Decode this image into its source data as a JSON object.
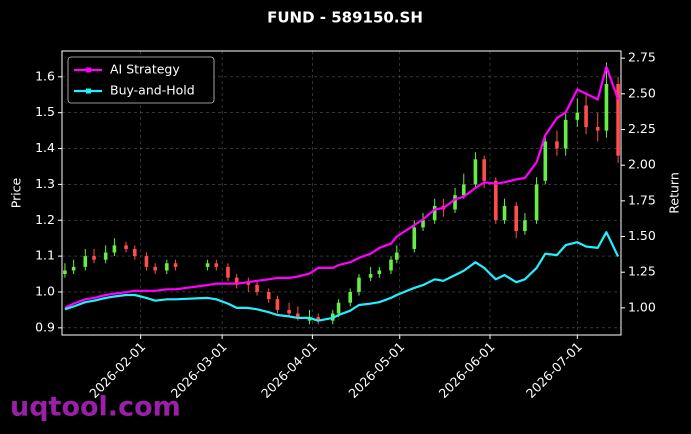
{
  "chart_data": {
    "type": "candlestick",
    "title": "FUND - 589150.SH",
    "ylabel": "Price",
    "y2label": "Return",
    "x": [
      "2026-01-06",
      "2026-01-09",
      "2026-01-13",
      "2026-01-16",
      "2026-01-20",
      "2026-01-23",
      "2026-01-27",
      "2026-01-30",
      "2026-02-03",
      "2026-02-06",
      "2026-02-10",
      "2026-02-13",
      "2026-02-24",
      "2026-02-27",
      "2026-03-03",
      "2026-03-06",
      "2026-03-10",
      "2026-03-13",
      "2026-03-17",
      "2026-03-20",
      "2026-03-24",
      "2026-03-27",
      "2026-03-31",
      "2026-04-03",
      "2026-04-08",
      "2026-04-10",
      "2026-04-14",
      "2026-04-17",
      "2026-04-21",
      "2026-04-24",
      "2026-04-28",
      "2026-04-30",
      "2026-05-06",
      "2026-05-09",
      "2026-05-13",
      "2026-05-16",
      "2026-05-20",
      "2026-05-23",
      "2026-05-27",
      "2026-05-30",
      "2026-06-03",
      "2026-06-06",
      "2026-06-10",
      "2026-06-13",
      "2026-06-17",
      "2026-06-20",
      "2026-06-24",
      "2026-06-27",
      "2026-07-01",
      "2026-07-04",
      "2026-07-08",
      "2026-07-11",
      "2026-07-15"
    ],
    "open": [
      1.05,
      1.06,
      1.07,
      1.1,
      1.09,
      1.11,
      1.13,
      1.12,
      1.1,
      1.07,
      1.06,
      1.08,
      1.07,
      1.08,
      1.07,
      1.04,
      1.03,
      1.02,
      1.0,
      0.98,
      0.95,
      0.94,
      0.92,
      0.93,
      0.92,
      0.94,
      0.97,
      1.0,
      1.04,
      1.05,
      1.06,
      1.09,
      1.12,
      1.18,
      1.2,
      1.24,
      1.23,
      1.27,
      1.3,
      1.37,
      1.31,
      1.2,
      1.24,
      1.17,
      1.2,
      1.31,
      1.42,
      1.4,
      1.48,
      1.52,
      1.46,
      1.45,
      1.58
    ],
    "high": [
      1.08,
      1.09,
      1.12,
      1.12,
      1.13,
      1.15,
      1.14,
      1.13,
      1.11,
      1.08,
      1.09,
      1.09,
      1.09,
      1.09,
      1.08,
      1.05,
      1.04,
      1.03,
      1.01,
      0.99,
      0.97,
      0.96,
      0.95,
      0.94,
      0.95,
      0.98,
      1.01,
      1.05,
      1.07,
      1.07,
      1.1,
      1.13,
      1.2,
      1.22,
      1.26,
      1.26,
      1.29,
      1.33,
      1.39,
      1.38,
      1.32,
      1.26,
      1.25,
      1.22,
      1.32,
      1.44,
      1.45,
      1.5,
      1.54,
      1.55,
      1.5,
      1.64,
      1.6
    ],
    "low": [
      1.04,
      1.05,
      1.06,
      1.08,
      1.08,
      1.1,
      1.11,
      1.09,
      1.06,
      1.05,
      1.05,
      1.06,
      1.06,
      1.06,
      1.03,
      1.01,
      1.0,
      0.99,
      0.97,
      0.94,
      0.93,
      0.92,
      0.91,
      0.91,
      0.91,
      0.93,
      0.96,
      0.99,
      1.03,
      1.04,
      1.05,
      1.08,
      1.11,
      1.17,
      1.19,
      1.21,
      1.22,
      1.26,
      1.29,
      1.29,
      1.19,
      1.19,
      1.15,
      1.16,
      1.19,
      1.3,
      1.38,
      1.38,
      1.46,
      1.44,
      1.42,
      1.43,
      1.36
    ],
    "close": [
      1.06,
      1.07,
      1.1,
      1.09,
      1.11,
      1.13,
      1.12,
      1.1,
      1.07,
      1.06,
      1.08,
      1.07,
      1.08,
      1.07,
      1.04,
      1.02,
      1.02,
      1.0,
      0.98,
      0.95,
      0.94,
      0.93,
      0.93,
      0.92,
      0.94,
      0.97,
      1.0,
      1.04,
      1.05,
      1.06,
      1.09,
      1.11,
      1.18,
      1.2,
      1.24,
      1.23,
      1.27,
      1.3,
      1.37,
      1.31,
      1.2,
      1.24,
      1.17,
      1.2,
      1.3,
      1.42,
      1.4,
      1.48,
      1.5,
      1.46,
      1.45,
      1.58,
      1.38
    ],
    "up_color": "#66ee44",
    "down_color": "#ff4d4d",
    "series": [
      {
        "name": "AI Strategy",
        "color": "#ff00ff",
        "axis": "y2",
        "values": [
          1.0,
          1.03,
          1.06,
          1.07,
          1.09,
          1.1,
          1.11,
          1.12,
          1.12,
          1.12,
          1.13,
          1.13,
          1.16,
          1.17,
          1.17,
          1.17,
          1.18,
          1.19,
          1.2,
          1.21,
          1.21,
          1.22,
          1.24,
          1.28,
          1.28,
          1.3,
          1.32,
          1.35,
          1.38,
          1.42,
          1.45,
          1.5,
          1.58,
          1.62,
          1.69,
          1.7,
          1.76,
          1.78,
          1.84,
          1.88,
          1.87,
          1.88,
          1.9,
          1.91,
          2.02,
          2.21,
          2.33,
          2.37,
          2.53,
          2.5,
          2.46,
          2.69,
          2.46
        ]
      },
      {
        "name": "Buy-and-Hold",
        "color": "#22f0ff",
        "axis": "y2",
        "values": [
          0.99,
          1.01,
          1.04,
          1.05,
          1.07,
          1.08,
          1.09,
          1.09,
          1.07,
          1.05,
          1.06,
          1.06,
          1.07,
          1.06,
          1.03,
          1.0,
          1.0,
          0.99,
          0.97,
          0.95,
          0.94,
          0.93,
          0.93,
          0.91,
          0.93,
          0.95,
          0.98,
          1.02,
          1.03,
          1.04,
          1.07,
          1.09,
          1.14,
          1.16,
          1.2,
          1.19,
          1.23,
          1.26,
          1.32,
          1.28,
          1.2,
          1.23,
          1.18,
          1.2,
          1.28,
          1.38,
          1.37,
          1.44,
          1.46,
          1.43,
          1.42,
          1.53,
          1.36
        ]
      }
    ],
    "xlim": [
      "2026-01-05",
      "2026-07-16"
    ],
    "xticks": [
      "2026-02-01",
      "2026-03-01",
      "2026-04-01",
      "2026-05-01",
      "2026-06-01",
      "2026-07-01"
    ],
    "ylim": [
      0.88,
      1.672
    ],
    "yticks": [
      0.9,
      {
        "value": 1,
        "label": "1.0"
      },
      1.1,
      1.2,
      1.3,
      1.4,
      1.5,
      1.6
    ],
    "y2lim": [
      0.81,
      2.8
    ],
    "y2ticks": [
      {
        "value": 1,
        "label": "1.00"
      },
      1.25,
      {
        "value": 1.5,
        "label": "1.50"
      },
      1.75,
      {
        "value": 2,
        "label": "2.00"
      },
      2.25,
      {
        "value": 2.5,
        "label": "2.50"
      },
      2.75
    ],
    "grid": true,
    "legend": "upper left"
  },
  "watermark": "uqtool.com"
}
